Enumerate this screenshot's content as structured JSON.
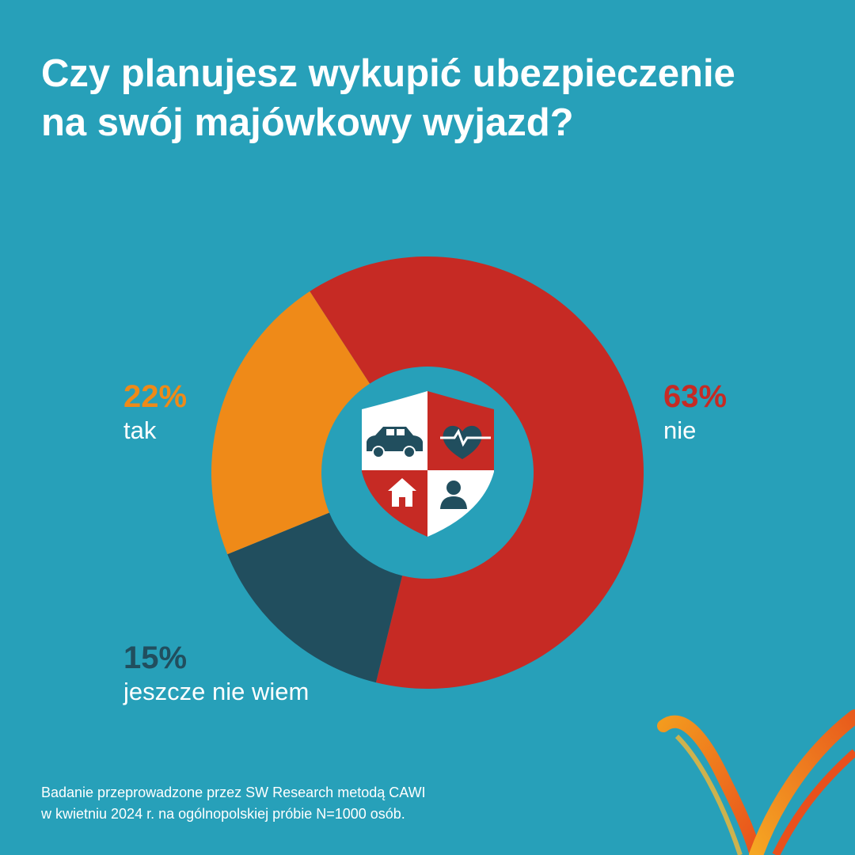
{
  "title": {
    "line1": "Czy planujesz wykupić ubezpieczenie",
    "line2": "na swój majówkowy wyjazd?"
  },
  "chart_data": {
    "type": "donut",
    "slices": [
      {
        "label": "nie",
        "value": 63,
        "value_label": "63%",
        "color": "#C62A24"
      },
      {
        "label": "jeszcze nie wiem",
        "value": 15,
        "value_label": "15%",
        "color": "#214E5E"
      },
      {
        "label": "tak",
        "value": 22,
        "value_label": "22%",
        "color": "#EF8A18"
      }
    ],
    "center_icon": "insurance-shield-icon"
  },
  "footnote": {
    "line1": "Badanie przeprowadzone przez SW Research metodą CAWI",
    "line2": "w kwietniu 2024 r. na ogólnopolskiej próbie N=1000 osób."
  },
  "colors": {
    "background": "#27A0B9",
    "text": "#FFFFFF"
  },
  "logo_icon": "brand-swoosh-logo-icon"
}
